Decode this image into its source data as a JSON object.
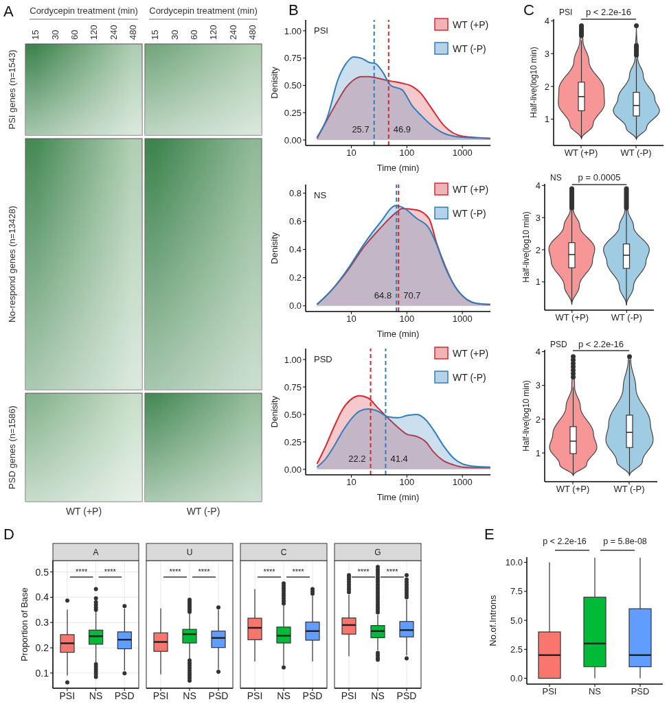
{
  "chart_data": [
    {
      "type": "other",
      "title": "Cordycepin treatment (min)",
      "categories": [
        "15",
        "30",
        "60",
        "120",
        "240",
        "480"
      ],
      "y_categories": [
        "PSI genes (n=1543)",
        "No-respond genes (n=13428)",
        "PSD genes (n=1586)"
      ],
      "xlabel": "WT (+P)",
      "annotations": [
        "A"
      ]
    },
    {
      "type": "other",
      "title": "Cordycepin treatment (min)",
      "categories": [
        "15",
        "30",
        "60",
        "120",
        "240",
        "480"
      ],
      "y_categories": [
        null,
        null,
        null
      ],
      "xlabel": "WT (-P)"
    },
    {
      "type": "area",
      "title": "PSI",
      "xlabel": "Time (min)",
      "ylabel": "Denisity",
      "annotations": [
        "B"
      ],
      "x": [
        2.4,
        3.7,
        5.7,
        8,
        11,
        15,
        21,
        27,
        37,
        51,
        82,
        126,
        177,
        270,
        470,
        1000,
        3200
      ],
      "series": [
        {
          "name": "WT (+P)",
          "color": "#d6282e",
          "values": [
            0.015,
            0.19,
            0.36,
            0.48,
            0.55,
            0.58,
            0.58,
            0.57,
            0.555,
            0.54,
            0.52,
            0.49,
            0.43,
            0.3,
            0.13,
            0.035,
            0.015
          ]
        },
        {
          "name": "WT (-P)",
          "color": "#2e7ebc",
          "values": [
            0.025,
            0.21,
            0.55,
            0.7,
            0.76,
            0.75,
            0.71,
            0.7,
            0.62,
            0.5,
            0.46,
            0.31,
            0.23,
            0.14,
            0.06,
            0.025,
            0.015
          ]
        }
      ],
      "xlim": [
        1.5,
        3200
      ],
      "xticks": [
        10,
        100,
        1000
      ],
      "log": "x",
      "ylim": [
        -0.05,
        1.1
      ],
      "yticks": [
        {
          "value": 0,
          "label": "0.00"
        },
        0.25,
        {
          "value": 0.5,
          "label": "0.50"
        },
        0.75,
        {
          "value": 1,
          "label": "1.00"
        }
      ],
      "legend": "top right",
      "ref_lines": [
        {
          "axis": "x",
          "value": 25.7,
          "label": "25.7",
          "color": "#2e7ebc",
          "line_style": "dashed"
        },
        {
          "axis": "x",
          "value": 46.9,
          "label": "46.9",
          "color": "#d6282e",
          "line_style": "dashed"
        }
      ]
    },
    {
      "type": "area",
      "title": "NS",
      "xlabel": "Time (min)",
      "ylabel": "Denisity",
      "x": [
        2.4,
        4.6,
        8.9,
        17,
        33,
        63,
        82,
        150,
        250,
        340,
        470,
        730,
        1120,
        1700,
        3200
      ],
      "series": [
        {
          "name": "WT (+P)",
          "color": "#d6282e",
          "values": [
            0.01,
            0.12,
            0.26,
            0.42,
            0.55,
            0.66,
            0.69,
            0.68,
            0.62,
            0.45,
            0.3,
            0.14,
            0.055,
            0.02,
            0.01
          ]
        },
        {
          "name": "WT (-P)",
          "color": "#2e7ebc",
          "values": [
            0.01,
            0.12,
            0.27,
            0.44,
            0.59,
            0.71,
            0.7,
            0.62,
            0.55,
            0.44,
            0.29,
            0.14,
            0.055,
            0.02,
            0.01
          ]
        }
      ],
      "xlim": [
        1.5,
        3200
      ],
      "xticks": [
        10,
        100,
        1000
      ],
      "log": "x",
      "ylim": [
        -0.04,
        0.86
      ],
      "yticks": [
        {
          "value": 0,
          "label": "0.0"
        },
        0.2,
        0.4,
        0.6,
        0.8
      ],
      "legend": "top right",
      "ref_lines": [
        {
          "axis": "x",
          "value": 64.8,
          "label": "64.8",
          "color": "#2e7ebc",
          "line_style": "dashed"
        },
        {
          "axis": "x",
          "value": 70.7,
          "label": "70.7",
          "color": "#d6282e",
          "line_style": "dashed"
        }
      ]
    },
    {
      "type": "area",
      "title": "PSD",
      "xlabel": "Time (min)",
      "ylabel": "Denisity",
      "x": [
        2.4,
        3.5,
        5,
        7,
        10,
        14,
        20,
        30,
        45,
        70,
        100,
        150,
        220,
        300,
        450,
        700,
        1000,
        1500,
        3200
      ],
      "series": [
        {
          "name": "WT (+P)",
          "color": "#d6282e",
          "values": [
            0.05,
            0.22,
            0.4,
            0.55,
            0.64,
            0.67,
            0.65,
            0.56,
            0.47,
            0.38,
            0.32,
            0.3,
            0.25,
            0.16,
            0.08,
            0.04,
            0.02,
            0.015,
            0.015
          ]
        },
        {
          "name": "WT (-P)",
          "color": "#2e7ebc",
          "values": [
            0.02,
            0.1,
            0.22,
            0.35,
            0.46,
            0.53,
            0.55,
            0.53,
            0.48,
            0.47,
            0.49,
            0.5,
            0.45,
            0.36,
            0.22,
            0.1,
            0.05,
            0.03,
            0.02
          ]
        }
      ],
      "xlim": [
        1.5,
        3200
      ],
      "xticks": [
        10,
        100,
        1000
      ],
      "log": "x",
      "ylim": [
        -0.05,
        1.1
      ],
      "yticks": [
        {
          "value": 0,
          "label": "0.00"
        },
        0.25,
        {
          "value": 0.5,
          "label": "0.50"
        },
        0.75,
        {
          "value": 1,
          "label": "1.00"
        }
      ],
      "legend": "top right",
      "ref_lines": [
        {
          "axis": "x",
          "value": 22.2,
          "label": "22.2",
          "color": "#d6282e",
          "line_style": "dashed"
        },
        {
          "axis": "x",
          "value": 41.4,
          "label": "41.4",
          "color": "#2e7ebc",
          "line_style": "dashed"
        }
      ]
    },
    {
      "type": "box",
      "title": "PSI",
      "ylabel": "Half-live(log10 min)",
      "annotations": [
        "C",
        "p < 2.2e-16"
      ],
      "categories": [
        "WT (+P)",
        "WT (-P)"
      ],
      "colors": [
        "#ffffff",
        "#ffffff"
      ],
      "boxes": [
        {
          "low": 0.4,
          "q1": 1.26,
          "median": 1.69,
          "q3": 2.13,
          "high": 3.4,
          "outliers": [
            3.55,
            3.6,
            3.65,
            3.7,
            3.75,
            3.8,
            3.85
          ]
        },
        {
          "low": 0.38,
          "q1": 1.1,
          "median": 1.42,
          "q3": 1.82,
          "high": 2.85,
          "outliers": [
            2.95,
            3,
            3.05,
            3.1,
            3.15,
            3.2,
            3.25,
            3.85
          ]
        }
      ],
      "ylim": [
        0.2,
        4.05
      ],
      "yticks": [
        1,
        2,
        3,
        4
      ]
    },
    {
      "type": "box",
      "title": "NS",
      "ylabel": "Half-live(log10 min)",
      "annotations": [
        "p = 0.0005"
      ],
      "categories": [
        "WT (+P)",
        "WT (-P)"
      ],
      "colors": [
        "#ffffff",
        "#ffffff"
      ],
      "boxes": [
        {
          "low": 0.3,
          "q1": 1.44,
          "median": 1.85,
          "q3": 2.22,
          "high": 3.25,
          "outliers": [
            3.3,
            3.35,
            3.4,
            3.45,
            3.5,
            3.55,
            3.6,
            3.65,
            3.7,
            3.75,
            3.8,
            3.85,
            3.9
          ]
        },
        {
          "low": 0.28,
          "q1": 1.42,
          "median": 1.83,
          "q3": 2.18,
          "high": 3.25,
          "outliers": [
            3.3,
            3.35,
            3.4,
            3.45,
            3.5,
            3.55,
            3.6,
            3.65,
            3.7,
            3.75,
            3.8,
            3.85,
            3.9
          ]
        }
      ],
      "ylim": [
        0.12,
        4.05
      ],
      "yticks": [
        1,
        2,
        3,
        4
      ]
    },
    {
      "type": "box",
      "title": "PSD",
      "ylabel": "Half-live(log10 min)",
      "annotations": [
        "p < 2.2e-16"
      ],
      "categories": [
        "WT (+P)",
        "WT (-P)"
      ],
      "colors": [
        "#ffffff",
        "#ffffff"
      ],
      "boxes": [
        {
          "low": 0.33,
          "q1": 0.98,
          "median": 1.35,
          "q3": 1.78,
          "high": 2.95,
          "outliers": [
            3.25,
            3.35,
            3.45,
            3.55,
            3.65,
            3.75,
            3.85
          ]
        },
        {
          "low": 0.33,
          "q1": 1.16,
          "median": 1.61,
          "q3": 2.12,
          "high": 3.75,
          "outliers": [
            3.85
          ]
        }
      ],
      "ylim": [
        0.15,
        4.05
      ],
      "yticks": [
        1,
        2,
        3,
        4
      ]
    },
    {
      "type": "box",
      "title": "A",
      "ylabel": "Proportion of Base",
      "annotations": [
        "D",
        "****",
        "****"
      ],
      "categories": [
        "PSI",
        "NS",
        "PSD"
      ],
      "colors": [
        "#f8766d",
        "#00ba38",
        "#619cff"
      ],
      "boxes": [
        {
          "low": 0.09,
          "q1": 0.182,
          "median": 0.218,
          "q3": 0.252,
          "high": 0.351,
          "outliers": [
            0.387,
            0.063
          ]
        },
        {
          "low": 0.14,
          "q1": 0.214,
          "median": 0.246,
          "q3": 0.27,
          "high": 0.345,
          "outliers": [
            0.35,
            0.36,
            0.37,
            0.38,
            0.396,
            0.432,
            0.135,
            0.125,
            0.115,
            0.105,
            0.095,
            0.085
          ]
        },
        {
          "low": 0.11,
          "q1": 0.196,
          "median": 0.232,
          "q3": 0.263,
          "high": 0.355,
          "outliers": [
            0.365,
            0.099
          ]
        }
      ],
      "ylim": [
        0.04,
        0.545
      ],
      "yticks": [
        0.1,
        0.2,
        0.3,
        0.4,
        0.5
      ],
      "grid": true
    },
    {
      "type": "box",
      "title": "U",
      "annotations": [
        "****",
        "****"
      ],
      "categories": [
        "PSI",
        "NS",
        "PSD"
      ],
      "colors": [
        "#f8766d",
        "#00ba38",
        "#619cff"
      ],
      "boxes": [
        {
          "low": 0.095,
          "q1": 0.186,
          "median": 0.223,
          "q3": 0.259,
          "high": 0.356
        },
        {
          "low": 0.155,
          "q1": 0.219,
          "median": 0.254,
          "q3": 0.273,
          "high": 0.335,
          "outliers": [
            0.342,
            0.35,
            0.358,
            0.366,
            0.374,
            0.382,
            0.39,
            0.15,
            0.14,
            0.13,
            0.12,
            0.11,
            0.1,
            0.09,
            0.08,
            0.07
          ]
        },
        {
          "low": 0.115,
          "q1": 0.201,
          "median": 0.239,
          "q3": 0.266,
          "high": 0.35,
          "outliers": [
            0.36,
            0.105
          ]
        }
      ],
      "ylim": [
        0.04,
        0.545
      ],
      "yticks": [
        0.1,
        0.2,
        0.3,
        0.4,
        0.5
      ],
      "grid": true,
      "tick_labels": "x"
    },
    {
      "type": "box",
      "title": "C",
      "annotations": [
        "****",
        "****"
      ],
      "categories": [
        "PSI",
        "NS",
        "PSD"
      ],
      "colors": [
        "#f8766d",
        "#00ba38",
        "#619cff"
      ],
      "boxes": [
        {
          "low": 0.146,
          "q1": 0.232,
          "median": 0.279,
          "q3": 0.317,
          "high": 0.432
        },
        {
          "low": 0.13,
          "q1": 0.219,
          "median": 0.248,
          "q3": 0.282,
          "high": 0.37,
          "outliers": [
            0.375,
            0.385,
            0.395,
            0.405,
            0.415,
            0.425,
            0.435,
            0.445,
            0.455,
            0.122
          ]
        },
        {
          "low": 0.146,
          "q1": 0.23,
          "median": 0.266,
          "q3": 0.302,
          "high": 0.405,
          "outliers": [
            0.414,
            0.423,
            0.432
          ]
        }
      ],
      "ylim": [
        0.04,
        0.545
      ],
      "yticks": [
        0.1,
        0.2,
        0.3,
        0.4,
        0.5
      ],
      "grid": true,
      "tick_labels": "x"
    },
    {
      "type": "box",
      "title": "G",
      "annotations": [
        "****",
        "****"
      ],
      "categories": [
        "PSI",
        "NS",
        "PSD"
      ],
      "colors": [
        "#f8766d",
        "#00ba38",
        "#619cff"
      ],
      "boxes": [
        {
          "low": 0.167,
          "q1": 0.254,
          "median": 0.29,
          "q3": 0.318,
          "high": 0.41,
          "outliers": [
            0.42,
            0.43,
            0.44,
            0.45,
            0.46,
            0.47,
            0.48,
            0.487
          ]
        },
        {
          "low": 0.19,
          "q1": 0.24,
          "median": 0.266,
          "q3": 0.288,
          "high": 0.33,
          "outliers": [
            0.34,
            0.35,
            0.36,
            0.37,
            0.38,
            0.39,
            0.4,
            0.41,
            0.42,
            0.43,
            0.44,
            0.45,
            0.46,
            0.47,
            0.48,
            0.49,
            0.5,
            0.51,
            0.52,
            0.18,
            0.17,
            0.16,
            0.153
          ]
        },
        {
          "low": 0.17,
          "q1": 0.243,
          "median": 0.27,
          "q3": 0.304,
          "high": 0.39,
          "outliers": [
            0.4,
            0.41,
            0.42,
            0.43,
            0.44,
            0.45,
            0.46,
            0.47,
            0.487,
            0.158
          ]
        }
      ],
      "ylim": [
        0.04,
        0.545
      ],
      "yticks": [
        0.1,
        0.2,
        0.3,
        0.4,
        0.5
      ],
      "grid": true,
      "tick_labels": "x"
    },
    {
      "type": "box",
      "ylabel": "No.of.Introns",
      "annotations": [
        "E",
        "p < 2.2e-16",
        "p = 5.8e-08"
      ],
      "categories": [
        "PSI",
        "NS",
        "PSD"
      ],
      "colors": [
        "#f8766d",
        "#00ba38",
        "#619cff"
      ],
      "boxes": [
        {
          "low": 0,
          "q1": 0,
          "median": 2,
          "q3": 4,
          "high": 10
        },
        {
          "low": 0,
          "q1": 1,
          "median": 3,
          "q3": 7,
          "high": 10.4
        },
        {
          "low": 0,
          "q1": 1,
          "median": 2,
          "q3": 6,
          "high": 10.4
        }
      ],
      "ylim": [
        -0.5,
        10.45
      ],
      "yticks": [
        {
          "value": 0,
          "label": "0.0"
        },
        2.5,
        {
          "value": 5,
          "label": "5.0"
        },
        7.5,
        {
          "value": 10,
          "label": "10.0"
        }
      ]
    }
  ]
}
